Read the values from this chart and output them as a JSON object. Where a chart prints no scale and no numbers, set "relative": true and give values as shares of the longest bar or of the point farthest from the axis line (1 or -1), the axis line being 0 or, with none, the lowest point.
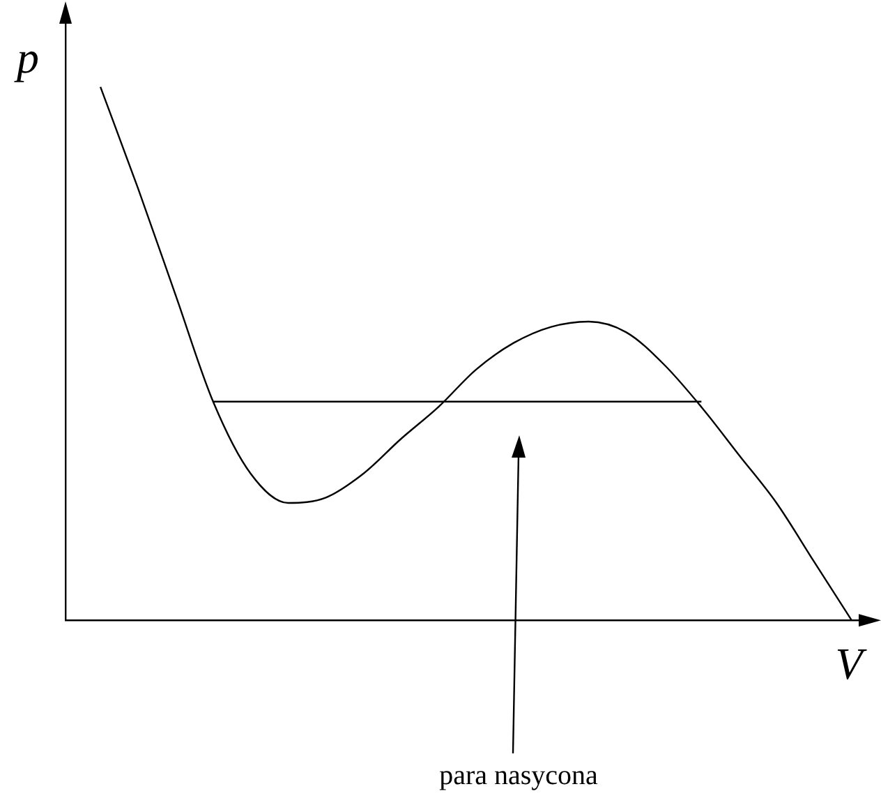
{
  "chart_data": {
    "type": "line",
    "relative": true,
    "xlabel": "V",
    "ylabel": "p",
    "categories": [
      null,
      null,
      null,
      null,
      null,
      null,
      null,
      null,
      null,
      null,
      null,
      null,
      null,
      null,
      null,
      null,
      null,
      null,
      null,
      null,
      null
    ],
    "series": [
      {
        "color": "#000000",
        "values": [
          1.0,
          0.81,
          0.61,
          0.41,
          0.275,
          0.22,
          0.23,
          0.275,
          0.34,
          0.4,
          0.47,
          0.52,
          0.55,
          0.56,
          0.54,
          0.48,
          0.4,
          0.31,
          0.22,
          0.11,
          0
        ]
      },
      {
        "color": "#000000",
        "values": [
          null,
          null,
          null,
          0.41,
          0.41,
          0.41,
          0.41,
          0.41,
          0.41,
          0.41,
          0.41,
          0.41,
          0.41,
          0.41,
          0.41,
          0.41,
          0.41,
          null,
          null,
          null,
          null
        ]
      }
    ],
    "annotations": [
      "para nasycona"
    ],
    "marker": "none",
    "line_style": "solid",
    "grid": false,
    "legend": false
  }
}
